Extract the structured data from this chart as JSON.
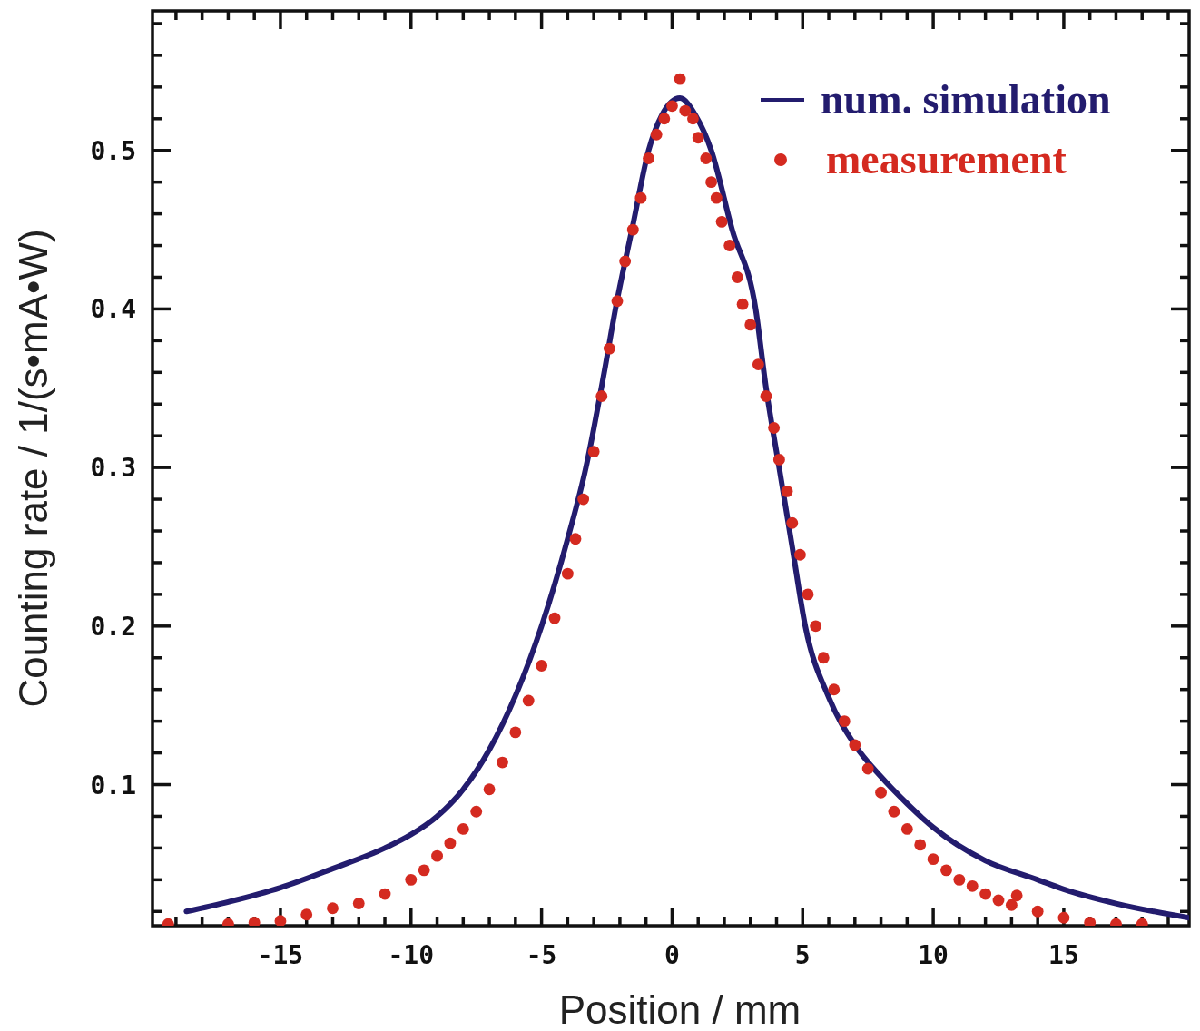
{
  "chart_data": {
    "type": "scatter",
    "xlabel": "Position / mm",
    "ylabel": "Counting rate / 1/(s•mA•W)",
    "xlim": [
      -19.9,
      19.8
    ],
    "ylim": [
      0.011,
      0.588
    ],
    "xticks": [
      {
        "value": -19,
        "label": null
      },
      {
        "value": -18,
        "label": null
      },
      {
        "value": -17,
        "label": null
      },
      {
        "value": -16,
        "label": null
      },
      -15,
      {
        "value": -14,
        "label": null
      },
      {
        "value": -13,
        "label": null
      },
      {
        "value": -12,
        "label": null
      },
      {
        "value": -11,
        "label": null
      },
      -10,
      {
        "value": -9,
        "label": null
      },
      {
        "value": -8,
        "label": null
      },
      {
        "value": -7,
        "label": null
      },
      {
        "value": -6,
        "label": null
      },
      -5,
      {
        "value": -4,
        "label": null
      },
      {
        "value": -3,
        "label": null
      },
      {
        "value": -2,
        "label": null
      },
      {
        "value": -1,
        "label": null
      },
      0,
      {
        "value": 1,
        "label": null
      },
      {
        "value": 2,
        "label": null
      },
      {
        "value": 3,
        "label": null
      },
      {
        "value": 4,
        "label": null
      },
      5,
      {
        "value": 6,
        "label": null
      },
      {
        "value": 7,
        "label": null
      },
      {
        "value": 8,
        "label": null
      },
      {
        "value": 9,
        "label": null
      },
      10,
      {
        "value": 11,
        "label": null
      },
      {
        "value": 12,
        "label": null
      },
      {
        "value": 13,
        "label": null
      },
      {
        "value": 14,
        "label": null
      },
      15,
      {
        "value": 16,
        "label": null
      },
      {
        "value": 17,
        "label": null
      },
      {
        "value": 18,
        "label": null
      },
      {
        "value": 19,
        "label": null
      }
    ],
    "yticks": [
      {
        "value": 0.02,
        "label": null
      },
      {
        "value": 0.04,
        "label": null
      },
      {
        "value": 0.06,
        "label": null
      },
      {
        "value": 0.08,
        "label": null
      },
      0.1,
      {
        "value": 0.12,
        "label": null
      },
      {
        "value": 0.14,
        "label": null
      },
      {
        "value": 0.16,
        "label": null
      },
      {
        "value": 0.18,
        "label": null
      },
      0.2,
      {
        "value": 0.22,
        "label": null
      },
      {
        "value": 0.24,
        "label": null
      },
      {
        "value": 0.26,
        "label": null
      },
      {
        "value": 0.28,
        "label": null
      },
      0.3,
      {
        "value": 0.32,
        "label": null
      },
      {
        "value": 0.34,
        "label": null
      },
      {
        "value": 0.36,
        "label": null
      },
      {
        "value": 0.38,
        "label": null
      },
      0.4,
      {
        "value": 0.42,
        "label": null
      },
      {
        "value": 0.44,
        "label": null
      },
      {
        "value": 0.46,
        "label": null
      },
      {
        "value": 0.48,
        "label": null
      },
      0.5,
      {
        "value": 0.52,
        "label": null
      },
      {
        "value": 0.54,
        "label": null
      },
      {
        "value": 0.56,
        "label": null
      },
      {
        "value": 0.58,
        "label": null
      }
    ],
    "grid": false,
    "legend": "top right",
    "series": [
      {
        "name": "num. simulation",
        "type": "line",
        "color": "#231c6e",
        "line_style": "solid",
        "x": [
          -18.6,
          -17,
          -15,
          -13,
          -11,
          -10,
          -9,
          -8,
          -7,
          -6,
          -5,
          -4,
          -3.3,
          -2.6,
          -2.17,
          -1.5,
          -0.9,
          -0.4,
          0.3,
          0.9,
          1.5,
          2.3,
          3.2,
          3.6,
          4.1,
          4.6,
          5.1,
          6,
          7,
          8,
          9,
          10,
          12,
          14,
          15,
          17,
          19.8
        ],
        "values": [
          0.02,
          0.026,
          0.035,
          0.047,
          0.06,
          0.0685,
          0.08,
          0.097,
          0.122,
          0.156,
          0.2,
          0.255,
          0.3,
          0.36,
          0.4,
          0.453,
          0.5,
          0.522,
          0.533,
          0.522,
          0.5,
          0.45,
          0.4,
          0.35,
          0.3,
          0.25,
          0.2,
          0.155,
          0.125,
          0.105,
          0.088,
          0.073,
          0.052,
          0.04,
          0.034,
          0.025,
          0.016
        ]
      },
      {
        "name": "measurement",
        "color": "#d42a20",
        "marker": "circle",
        "x": [
          -19.3,
          -17,
          -16,
          -15,
          -14,
          -13,
          -12,
          -11,
          -10,
          -9.5,
          -9,
          -8.5,
          -8,
          -7.5,
          -7,
          -6.5,
          -6,
          -5.5,
          -5,
          -4.5,
          -4,
          -3.7,
          -3.4,
          -3,
          -2.7,
          -2.4,
          -2.1,
          -1.8,
          -1.5,
          -1.2,
          -0.9,
          -0.6,
          -0.3,
          0,
          0.3,
          0.5,
          0.8,
          1,
          1.3,
          1.5,
          1.7,
          1.9,
          2.2,
          2.5,
          2.7,
          3,
          3.3,
          3.6,
          3.9,
          4.1,
          4.4,
          4.6,
          4.9,
          5.2,
          5.5,
          5.8,
          6.2,
          6.6,
          7,
          7.5,
          8,
          8.5,
          9,
          9.5,
          10,
          10.5,
          11,
          11.5,
          12,
          12.5,
          13,
          13.2,
          14,
          15,
          16,
          17,
          18
        ],
        "values": [
          0.012,
          0.012,
          0.013,
          0.014,
          0.018,
          0.022,
          0.025,
          0.031,
          0.04,
          0.046,
          0.055,
          0.063,
          0.072,
          0.083,
          0.097,
          0.114,
          0.133,
          0.153,
          0.175,
          0.205,
          0.233,
          0.255,
          0.28,
          0.31,
          0.345,
          0.375,
          0.405,
          0.43,
          0.45,
          0.47,
          0.495,
          0.51,
          0.52,
          0.528,
          0.545,
          0.525,
          0.52,
          0.508,
          0.495,
          0.48,
          0.47,
          0.455,
          0.44,
          0.42,
          0.403,
          0.39,
          0.365,
          0.345,
          0.325,
          0.305,
          0.285,
          0.265,
          0.245,
          0.22,
          0.2,
          0.18,
          0.16,
          0.14,
          0.125,
          0.11,
          0.095,
          0.083,
          0.072,
          0.062,
          0.053,
          0.046,
          0.04,
          0.036,
          0.031,
          0.027,
          0.024,
          0.03,
          0.02,
          0.016,
          0.013,
          0.012,
          0.012
        ]
      }
    ]
  }
}
